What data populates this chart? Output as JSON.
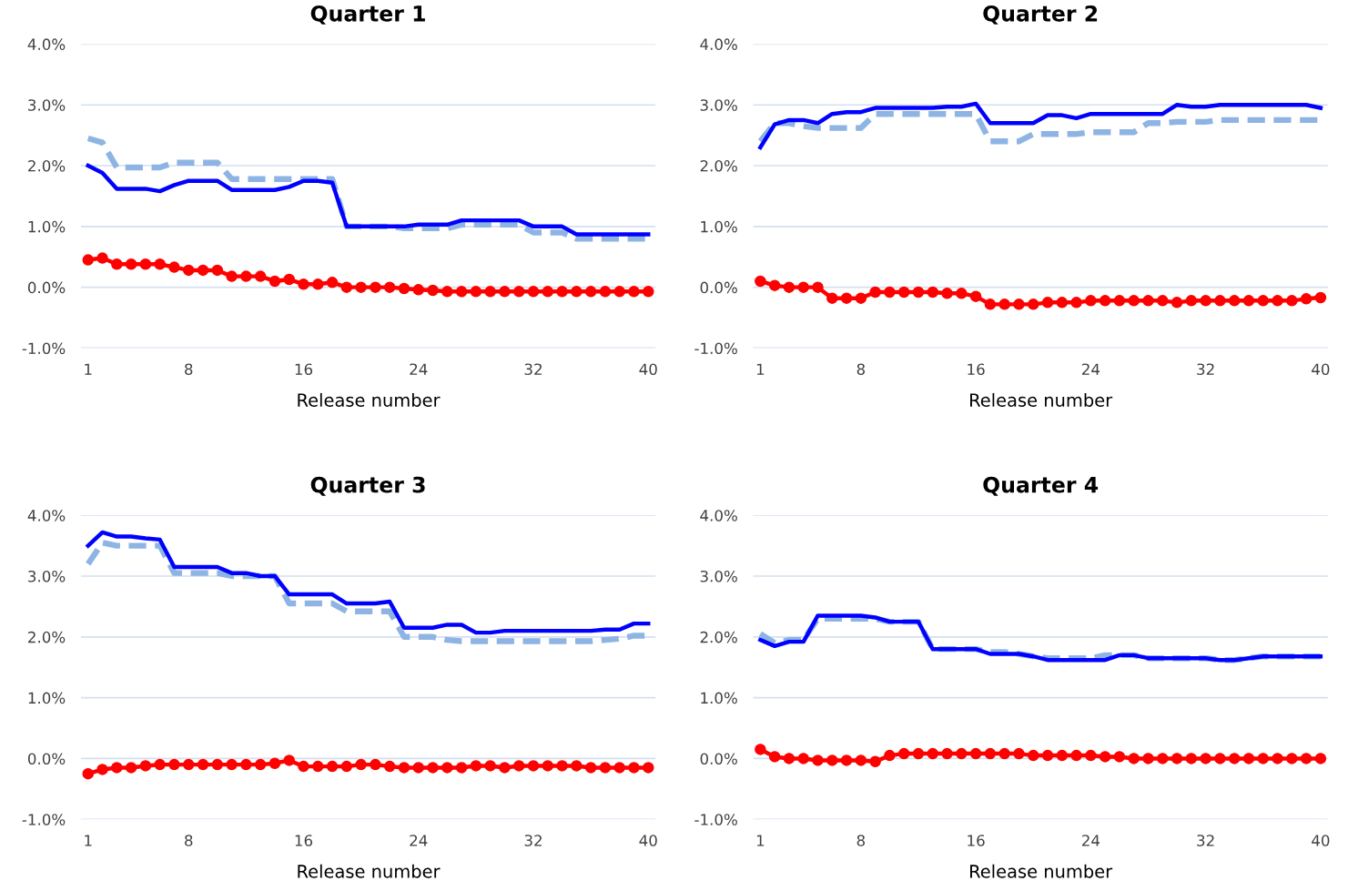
{
  "chart_data": [
    {
      "type": "line",
      "title": "Quarter 1",
      "xlabel": "Release number",
      "grid": "y",
      "xlim": [
        0.5,
        40.5
      ],
      "xticks": [
        1,
        8,
        16,
        24,
        32,
        40
      ],
      "ylim": [
        -1.0,
        4.0
      ],
      "yticks": [
        {
          "value": -1.0,
          "label": "-1.0%"
        },
        {
          "value": 0.0,
          "label": "0.0%"
        },
        {
          "value": 1.0,
          "label": "1.0%"
        },
        {
          "value": 2.0,
          "label": "2.0%"
        },
        {
          "value": 3.0,
          "label": "3.0%"
        },
        {
          "value": 4.0,
          "label": "4.0%"
        }
      ],
      "x": [
        1,
        2,
        3,
        4,
        5,
        6,
        7,
        8,
        9,
        10,
        11,
        12,
        13,
        14,
        15,
        16,
        17,
        18,
        19,
        20,
        21,
        22,
        23,
        24,
        25,
        26,
        27,
        28,
        29,
        30,
        31,
        32,
        33,
        34,
        35,
        36,
        37,
        38,
        39,
        40
      ],
      "series": [
        {
          "color": "#8eb4e3",
          "line_style": "dashed",
          "marker": "none",
          "values": [
            2.45,
            2.38,
            1.97,
            1.97,
            1.97,
            1.97,
            2.05,
            2.05,
            2.05,
            2.05,
            1.78,
            1.78,
            1.78,
            1.78,
            1.78,
            1.78,
            1.78,
            1.78,
            1.0,
            1.0,
            1.0,
            1.0,
            0.97,
            0.97,
            0.97,
            0.97,
            1.03,
            1.03,
            1.03,
            1.03,
            1.03,
            0.9,
            0.9,
            0.9,
            0.8,
            0.8,
            0.8,
            0.8,
            0.8,
            0.8
          ]
        },
        {
          "color": "#0000ff",
          "line_style": "solid",
          "marker": "none",
          "values": [
            2.0,
            1.88,
            1.62,
            1.62,
            1.62,
            1.58,
            1.68,
            1.75,
            1.75,
            1.75,
            1.6,
            1.6,
            1.6,
            1.6,
            1.65,
            1.75,
            1.75,
            1.72,
            1.0,
            1.0,
            1.0,
            1.0,
            1.0,
            1.03,
            1.03,
            1.03,
            1.1,
            1.1,
            1.1,
            1.1,
            1.1,
            1.0,
            1.0,
            1.0,
            0.87,
            0.87,
            0.87,
            0.87,
            0.87,
            0.87
          ]
        },
        {
          "color": "#ff0000",
          "line_style": "solid",
          "marker": "circle",
          "values": [
            0.45,
            0.48,
            0.38,
            0.38,
            0.38,
            0.38,
            0.33,
            0.28,
            0.28,
            0.28,
            0.18,
            0.18,
            0.18,
            0.1,
            0.13,
            0.05,
            0.05,
            0.08,
            0.0,
            0.0,
            0.0,
            0.0,
            -0.02,
            -0.04,
            -0.05,
            -0.07,
            -0.07,
            -0.07,
            -0.07,
            -0.07,
            -0.07,
            -0.07,
            -0.07,
            -0.07,
            -0.07,
            -0.07,
            -0.07,
            -0.07,
            -0.07,
            -0.07
          ]
        }
      ]
    },
    {
      "type": "line",
      "title": "Quarter 2",
      "xlabel": "Release number",
      "grid": "y",
      "xlim": [
        0.5,
        40.5
      ],
      "xticks": [
        1,
        8,
        16,
        24,
        32,
        40
      ],
      "ylim": [
        -1.0,
        4.0
      ],
      "yticks": [
        {
          "value": -1.0,
          "label": "-1.0%"
        },
        {
          "value": 0.0,
          "label": "0.0%"
        },
        {
          "value": 1.0,
          "label": "1.0%"
        },
        {
          "value": 2.0,
          "label": "2.0%"
        },
        {
          "value": 3.0,
          "label": "3.0%"
        },
        {
          "value": 4.0,
          "label": "4.0%"
        }
      ],
      "x": [
        1,
        2,
        3,
        4,
        5,
        6,
        7,
        8,
        9,
        10,
        11,
        12,
        13,
        14,
        15,
        16,
        17,
        18,
        19,
        20,
        21,
        22,
        23,
        24,
        25,
        26,
        27,
        28,
        29,
        30,
        31,
        32,
        33,
        34,
        35,
        36,
        37,
        38,
        39,
        40
      ],
      "series": [
        {
          "color": "#8eb4e3",
          "line_style": "dashed",
          "marker": "none",
          "values": [
            2.4,
            2.7,
            2.7,
            2.65,
            2.62,
            2.62,
            2.62,
            2.62,
            2.85,
            2.85,
            2.85,
            2.85,
            2.85,
            2.85,
            2.85,
            2.85,
            2.4,
            2.4,
            2.4,
            2.52,
            2.52,
            2.52,
            2.52,
            2.55,
            2.55,
            2.55,
            2.55,
            2.7,
            2.7,
            2.72,
            2.72,
            2.72,
            2.75,
            2.75,
            2.75,
            2.75,
            2.75,
            2.75,
            2.75,
            2.75
          ]
        },
        {
          "color": "#0000ff",
          "line_style": "solid",
          "marker": "none",
          "values": [
            2.3,
            2.68,
            2.75,
            2.75,
            2.7,
            2.85,
            2.88,
            2.88,
            2.95,
            2.95,
            2.95,
            2.95,
            2.95,
            2.97,
            2.97,
            3.02,
            2.7,
            2.7,
            2.7,
            2.7,
            2.83,
            2.83,
            2.78,
            2.85,
            2.85,
            2.85,
            2.85,
            2.85,
            2.85,
            3.0,
            2.97,
            2.97,
            3.0,
            3.0,
            3.0,
            3.0,
            3.0,
            3.0,
            3.0,
            2.95
          ]
        },
        {
          "color": "#ff0000",
          "line_style": "solid",
          "marker": "circle",
          "values": [
            0.1,
            0.03,
            0.0,
            0.0,
            0.0,
            -0.18,
            -0.18,
            -0.18,
            -0.08,
            -0.08,
            -0.08,
            -0.08,
            -0.08,
            -0.1,
            -0.1,
            -0.15,
            -0.28,
            -0.28,
            -0.28,
            -0.28,
            -0.25,
            -0.25,
            -0.25,
            -0.22,
            -0.22,
            -0.22,
            -0.22,
            -0.22,
            -0.22,
            -0.25,
            -0.22,
            -0.22,
            -0.22,
            -0.22,
            -0.22,
            -0.22,
            -0.22,
            -0.22,
            -0.19,
            -0.17
          ]
        }
      ]
    },
    {
      "type": "line",
      "title": "Quarter 3",
      "xlabel": "Release number",
      "grid": "y",
      "xlim": [
        0.5,
        40.5
      ],
      "xticks": [
        1,
        8,
        16,
        24,
        32,
        40
      ],
      "ylim": [
        -1.0,
        4.0
      ],
      "yticks": [
        {
          "value": -1.0,
          "label": "-1.0%"
        },
        {
          "value": 0.0,
          "label": "0.0%"
        },
        {
          "value": 1.0,
          "label": "1.0%"
        },
        {
          "value": 2.0,
          "label": "2.0%"
        },
        {
          "value": 3.0,
          "label": "3.0%"
        },
        {
          "value": 4.0,
          "label": "4.0%"
        }
      ],
      "x": [
        1,
        2,
        3,
        4,
        5,
        6,
        7,
        8,
        9,
        10,
        11,
        12,
        13,
        14,
        15,
        16,
        17,
        18,
        19,
        20,
        21,
        22,
        23,
        24,
        25,
        26,
        27,
        28,
        29,
        30,
        31,
        32,
        33,
        34,
        35,
        36,
        37,
        38,
        39,
        40
      ],
      "series": [
        {
          "color": "#8eb4e3",
          "line_style": "dashed",
          "marker": "none",
          "values": [
            3.2,
            3.55,
            3.5,
            3.5,
            3.5,
            3.5,
            3.05,
            3.05,
            3.05,
            3.05,
            3.0,
            3.0,
            3.0,
            3.0,
            2.55,
            2.55,
            2.55,
            2.55,
            2.42,
            2.42,
            2.42,
            2.42,
            2.0,
            2.0,
            2.0,
            1.95,
            1.93,
            1.93,
            1.93,
            1.93,
            1.93,
            1.93,
            1.93,
            1.93,
            1.93,
            1.93,
            1.95,
            1.97,
            2.02,
            2.02
          ]
        },
        {
          "color": "#0000ff",
          "line_style": "solid",
          "marker": "none",
          "values": [
            3.5,
            3.72,
            3.65,
            3.65,
            3.62,
            3.6,
            3.15,
            3.15,
            3.15,
            3.15,
            3.05,
            3.05,
            3.0,
            3.0,
            2.7,
            2.7,
            2.7,
            2.7,
            2.55,
            2.55,
            2.55,
            2.58,
            2.15,
            2.15,
            2.15,
            2.2,
            2.2,
            2.07,
            2.07,
            2.1,
            2.1,
            2.1,
            2.1,
            2.1,
            2.1,
            2.1,
            2.12,
            2.12,
            2.22,
            2.22
          ]
        },
        {
          "color": "#ff0000",
          "line_style": "solid",
          "marker": "circle",
          "values": [
            -0.25,
            -0.18,
            -0.15,
            -0.15,
            -0.12,
            -0.1,
            -0.1,
            -0.1,
            -0.1,
            -0.1,
            -0.1,
            -0.1,
            -0.1,
            -0.08,
            -0.03,
            -0.13,
            -0.13,
            -0.13,
            -0.13,
            -0.1,
            -0.1,
            -0.13,
            -0.15,
            -0.15,
            -0.15,
            -0.15,
            -0.15,
            -0.12,
            -0.12,
            -0.15,
            -0.12,
            -0.12,
            -0.12,
            -0.12,
            -0.12,
            -0.15,
            -0.15,
            -0.15,
            -0.15,
            -0.15
          ]
        }
      ]
    },
    {
      "type": "line",
      "title": "Quarter 4",
      "xlabel": "Release number",
      "grid": "y",
      "xlim": [
        0.5,
        40.5
      ],
      "xticks": [
        1,
        8,
        16,
        24,
        32,
        40
      ],
      "ylim": [
        -1.0,
        4.0
      ],
      "yticks": [
        {
          "value": -1.0,
          "label": "-1.0%"
        },
        {
          "value": 0.0,
          "label": "0.0%"
        },
        {
          "value": 1.0,
          "label": "1.0%"
        },
        {
          "value": 2.0,
          "label": "2.0%"
        },
        {
          "value": 3.0,
          "label": "3.0%"
        },
        {
          "value": 4.0,
          "label": "4.0%"
        }
      ],
      "x": [
        1,
        2,
        3,
        4,
        5,
        6,
        7,
        8,
        9,
        10,
        11,
        12,
        13,
        14,
        15,
        16,
        17,
        18,
        19,
        20,
        21,
        22,
        23,
        24,
        25,
        26,
        27,
        28,
        29,
        30,
        31,
        32,
        33,
        34,
        35,
        36,
        37,
        38,
        39,
        40
      ],
      "series": [
        {
          "color": "#8eb4e3",
          "line_style": "dashed",
          "marker": "none",
          "values": [
            2.05,
            1.9,
            1.95,
            1.95,
            2.3,
            2.3,
            2.3,
            2.3,
            2.3,
            2.25,
            2.25,
            2.25,
            1.8,
            1.8,
            1.8,
            1.8,
            1.75,
            1.75,
            1.72,
            1.68,
            1.65,
            1.65,
            1.65,
            1.65,
            1.7,
            1.7,
            1.7,
            1.65,
            1.65,
            1.65,
            1.65,
            1.65,
            1.62,
            1.62,
            1.65,
            1.68,
            1.68,
            1.68,
            1.68,
            1.68
          ]
        },
        {
          "color": "#0000ff",
          "line_style": "solid",
          "marker": "none",
          "values": [
            1.95,
            1.85,
            1.92,
            1.92,
            2.35,
            2.35,
            2.35,
            2.35,
            2.32,
            2.25,
            2.25,
            2.25,
            1.8,
            1.8,
            1.8,
            1.8,
            1.72,
            1.72,
            1.72,
            1.68,
            1.62,
            1.62,
            1.62,
            1.62,
            1.62,
            1.7,
            1.7,
            1.65,
            1.65,
            1.65,
            1.65,
            1.65,
            1.62,
            1.62,
            1.65,
            1.68,
            1.68,
            1.68,
            1.68,
            1.68
          ]
        },
        {
          "color": "#ff0000",
          "line_style": "solid",
          "marker": "circle",
          "values": [
            0.15,
            0.03,
            0.0,
            0.0,
            -0.03,
            -0.03,
            -0.03,
            -0.03,
            -0.05,
            0.05,
            0.08,
            0.08,
            0.08,
            0.08,
            0.08,
            0.08,
            0.08,
            0.08,
            0.08,
            0.05,
            0.05,
            0.05,
            0.05,
            0.05,
            0.03,
            0.03,
            0.0,
            0.0,
            0.0,
            0.0,
            0.0,
            0.0,
            0.0,
            0.0,
            0.0,
            0.0,
            0.0,
            0.0,
            0.0,
            0.0
          ]
        }
      ]
    }
  ]
}
